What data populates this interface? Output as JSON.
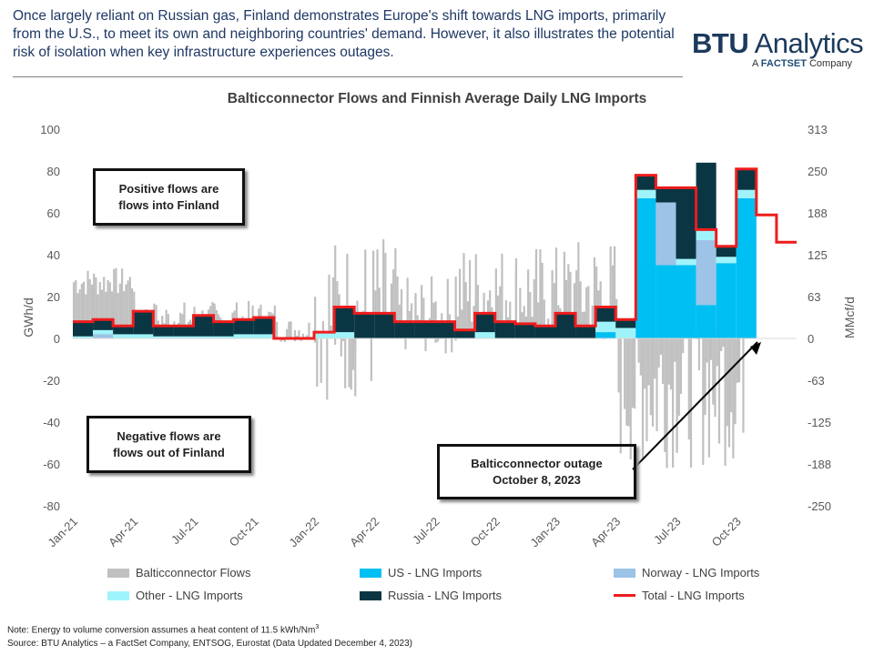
{
  "header": {
    "text": "Once largely reliant on Russian gas, Finland demonstrates Europe's shift towards LNG imports, primarily from the U.S., to meet its own and neighboring countries' demand. However, it also illustrates the potential risk of isolation when key infrastructure experiences outages."
  },
  "logo": {
    "part1": "BTU",
    "part2": " Analytics",
    "sub_prefix": "A ",
    "sub_brand": "FACTSET",
    "sub_suffix": " Company"
  },
  "chart_data": {
    "type": "bar",
    "title": "Balticconnector Flows and Finnish Average Daily LNG Imports",
    "ylabel_left": "GWh/d",
    "ylabel_right": "MMcf/d",
    "ylim": [
      -80,
      100
    ],
    "yticks_left": [
      "100",
      "80",
      "60",
      "40",
      "20",
      "0",
      "-20",
      "-40",
      "-60",
      "-80"
    ],
    "yticks_right": [
      "313",
      "250",
      "188",
      "125",
      "63",
      "0",
      "-63",
      "-125",
      "-188",
      "-250"
    ],
    "x_ticks": [
      "Jan-21",
      "Apr-21",
      "Jul-21",
      "Oct-21",
      "Jan-22",
      "Apr-22",
      "Jul-22",
      "Oct-22",
      "Jan-23",
      "Apr-23",
      "Jul-23",
      "Oct-23"
    ],
    "months": [
      "Jan-21",
      "Feb-21",
      "Mar-21",
      "Apr-21",
      "May-21",
      "Jun-21",
      "Jul-21",
      "Aug-21",
      "Sep-21",
      "Oct-21",
      "Nov-21",
      "Dec-21",
      "Jan-22",
      "Feb-22",
      "Mar-22",
      "Apr-22",
      "May-22",
      "Jun-22",
      "Jul-22",
      "Aug-22",
      "Sep-22",
      "Oct-22",
      "Nov-22",
      "Dec-22",
      "Jan-23",
      "Feb-23",
      "Mar-23",
      "Apr-23",
      "May-23",
      "Jun-23",
      "Jul-23",
      "Aug-23",
      "Sep-23",
      "Oct-23",
      "Nov-23",
      "Dec-23"
    ],
    "series": [
      {
        "name": "US - LNG Imports",
        "color": "#00bff3",
        "values": [
          0,
          0,
          0,
          0,
          0,
          0,
          0,
          0,
          0,
          0,
          0,
          0,
          0,
          0,
          0,
          0,
          0,
          0,
          0,
          0,
          0,
          0,
          0,
          0,
          0,
          0,
          3,
          0,
          67,
          35,
          35,
          16,
          36,
          67,
          0,
          0
        ]
      },
      {
        "name": "Norway - LNG Imports",
        "color": "#9dc3e6",
        "values": [
          0,
          2,
          0,
          0,
          0,
          0,
          0,
          0,
          0,
          0,
          0,
          0,
          0,
          0,
          0,
          0,
          0,
          0,
          0,
          0,
          0,
          0,
          0,
          0,
          0,
          0,
          0,
          0,
          0,
          30,
          0,
          31,
          0,
          0,
          0,
          0
        ]
      },
      {
        "name": "Other - LNG Imports",
        "color": "#9ff4fb",
        "values": [
          1,
          2,
          2,
          2,
          1,
          1,
          1,
          1,
          2,
          2,
          0,
          0,
          3,
          3,
          0,
          0,
          0,
          0,
          0,
          0,
          3,
          0,
          0,
          0,
          0,
          0,
          5,
          5,
          4,
          0,
          3,
          5,
          3,
          4,
          0,
          0
        ]
      },
      {
        "name": "Russia - LNG Imports",
        "color": "#093642",
        "values": [
          7,
          5,
          4,
          11,
          5,
          5,
          10,
          7,
          7,
          8,
          0,
          0,
          0,
          12,
          12,
          12,
          8,
          8,
          8,
          4,
          9,
          8,
          7,
          6,
          12,
          6,
          7,
          4,
          7,
          7,
          34,
          32,
          5,
          10,
          0,
          0
        ]
      },
      {
        "name": "Total - LNG Imports",
        "color": "#ee1c1c",
        "values": [
          8,
          9,
          6,
          13,
          6,
          6,
          11,
          8,
          9,
          10,
          0,
          0,
          3,
          15,
          12,
          12,
          8,
          8,
          8,
          4,
          12,
          8,
          7,
          6,
          12,
          6,
          15,
          9,
          78,
          72,
          72,
          52,
          44,
          81,
          59,
          46
        ]
      }
    ],
    "flows_series": {
      "name": "Balticconnector Flows",
      "color": "#c0c0c0"
    },
    "grid": false,
    "legend": "bottom"
  },
  "callouts": {
    "positive": [
      "Positive flows are",
      "flows into Finland"
    ],
    "negative": [
      "Negative flows are",
      "flows out of Finland"
    ],
    "outage": [
      "Balticconnector outage",
      "October 8, 2023"
    ]
  },
  "notes": {
    "note": "Note: Energy to volume conversion assumes a heat content of 11.5 kWh/Nm",
    "note_sup": "3",
    "source": "Source: BTU Analytics – a FactSet Company, ENTSOG, Eurostat (Data Updated December 4, 2023)"
  },
  "legend_labels": {
    "flows": "Balticconnector Flows",
    "us": "US - LNG Imports",
    "norway": "Norway - LNG Imports",
    "other": "Other - LNG Imports",
    "russia": "Russia - LNG Imports",
    "total": "Total - LNG Imports"
  },
  "colors": {
    "callout_blue": "#dbe9f1",
    "callout_yellow": "#ffe699",
    "axis_text": "#595959"
  }
}
